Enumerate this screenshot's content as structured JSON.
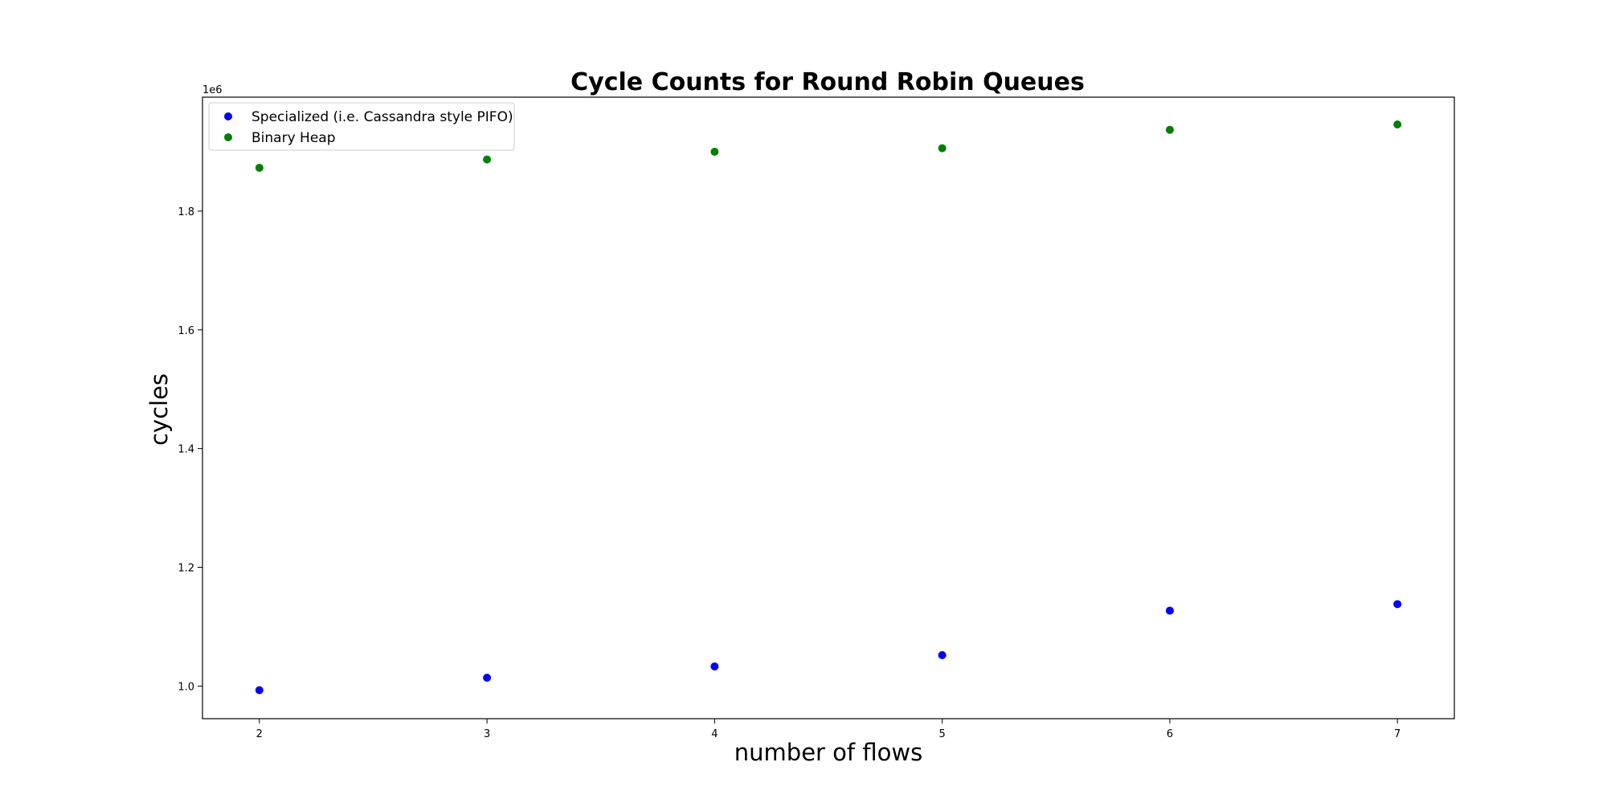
{
  "chart_data": {
    "type": "scatter",
    "title": "Cycle Counts for Round Robin Queues",
    "xlabel": "number of flows",
    "ylabel": "cycles",
    "y_offset_label": "1e6",
    "y_scale": 1000000,
    "x": [
      2,
      3,
      4,
      5,
      6,
      7
    ],
    "xlim": [
      1.75,
      7.25
    ],
    "ylim": [
      945000,
      1992000
    ],
    "x_ticks": [
      2,
      3,
      4,
      5,
      6,
      7
    ],
    "y_ticks": [
      1.0,
      1.2,
      1.4,
      1.6,
      1.8
    ],
    "y_tick_labels": [
      "1.0",
      "1.2",
      "1.4",
      "1.6",
      "1.8"
    ],
    "grid": false,
    "legend_position": "top-left",
    "series": [
      {
        "name": "Specialized (i.e. Cassandra style PIFO)",
        "color": "#0000ff",
        "values": [
          993000,
          1014000,
          1033000,
          1052000,
          1127000,
          1138000
        ]
      },
      {
        "name": "Binary Heap",
        "color": "#008000",
        "values": [
          1873000,
          1887000,
          1900000,
          1906000,
          1937000,
          1946000
        ]
      }
    ]
  }
}
